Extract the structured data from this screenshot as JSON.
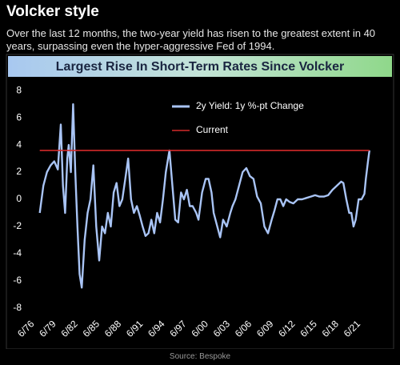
{
  "header": {
    "title": "Volcker style",
    "subtitle": "Over the last 12 months, the two-year yield has risen to the greatest extent in 40 years, surpassing even the hyper-aggressive Fed of 1994."
  },
  "chart_data": {
    "type": "line",
    "title": "Largest Rise In Short-Term Rates Since Volcker",
    "xlim": [
      1975.6,
      2023.4
    ],
    "ylim": [
      -8.6,
      8.6
    ],
    "yticks": [
      -8,
      -6,
      -4,
      -2,
      0,
      2,
      4,
      6,
      8
    ],
    "xticks": [
      {
        "value": 1976.5,
        "label": "6/76"
      },
      {
        "value": 1979.5,
        "label": "6/79"
      },
      {
        "value": 1982.5,
        "label": "6/82"
      },
      {
        "value": 1985.5,
        "label": "6/85"
      },
      {
        "value": 1988.5,
        "label": "6/88"
      },
      {
        "value": 1991.5,
        "label": "6/91"
      },
      {
        "value": 1994.5,
        "label": "6/94"
      },
      {
        "value": 1997.5,
        "label": "6/97"
      },
      {
        "value": 2000.5,
        "label": "6/00"
      },
      {
        "value": 2003.5,
        "label": "6/03"
      },
      {
        "value": 2006.5,
        "label": "6/06"
      },
      {
        "value": 2009.5,
        "label": "6/09"
      },
      {
        "value": 2012.5,
        "label": "6/12"
      },
      {
        "value": 2015.5,
        "label": "6/15"
      },
      {
        "value": 2018.5,
        "label": "6/18"
      },
      {
        "value": 2021.5,
        "label": "6/21"
      }
    ],
    "legend": "upper center",
    "series": [
      {
        "name": "2y Yield: 1y %-pt Change",
        "color": "#a9c4f5",
        "x": [
          1977.0,
          1977.5,
          1978.0,
          1978.5,
          1979.0,
          1979.5,
          1979.9,
          1980.2,
          1980.5,
          1980.8,
          1981.0,
          1981.3,
          1981.6,
          1981.9,
          1982.2,
          1982.5,
          1982.8,
          1983.2,
          1983.6,
          1984.0,
          1984.4,
          1984.8,
          1985.2,
          1985.6,
          1986.0,
          1986.4,
          1986.8,
          1987.2,
          1987.6,
          1988.0,
          1988.4,
          1988.8,
          1989.2,
          1989.6,
          1990.0,
          1990.4,
          1990.8,
          1991.2,
          1991.6,
          1992.0,
          1992.4,
          1992.8,
          1993.2,
          1993.6,
          1994.0,
          1994.4,
          1994.9,
          1995.3,
          1995.7,
          1996.1,
          1996.5,
          1996.9,
          1997.3,
          1997.7,
          1998.1,
          1998.6,
          1998.9,
          1999.4,
          1999.9,
          2000.3,
          2000.7,
          2001.0,
          2001.5,
          2001.9,
          2002.3,
          2002.8,
          2003.3,
          2003.6,
          2004.0,
          2004.5,
          2005.0,
          2005.5,
          2006.0,
          2006.5,
          2007.0,
          2007.5,
          2008.0,
          2008.5,
          2009.0,
          2009.4,
          2009.8,
          2010.2,
          2010.6,
          2011.0,
          2011.5,
          2012.0,
          2012.6,
          2013.2,
          2013.8,
          2014.4,
          2015.0,
          2015.6,
          2016.2,
          2016.8,
          2017.4,
          2018.0,
          2018.6,
          2018.9,
          2019.3,
          2019.7,
          2020.0,
          2020.3,
          2020.6,
          2021.0,
          2021.4,
          2021.8,
          2022.0,
          2022.3,
          2022.5
        ],
        "values": [
          -1,
          1,
          2,
          2.5,
          2.8,
          2.2,
          5.5,
          1,
          -1,
          3,
          4,
          2,
          7,
          2,
          -2,
          -5.5,
          -6.5,
          -3,
          -1,
          0,
          2.5,
          -2,
          -4.5,
          -2,
          -2.5,
          -1,
          -2,
          0.5,
          1.2,
          -0.5,
          0,
          1.5,
          3,
          0,
          -1,
          -0.5,
          -1.2,
          -2,
          -2.7,
          -2.5,
          -1.5,
          -2.5,
          -1,
          -1.7,
          0,
          2,
          3.6,
          1,
          -1.5,
          -1.7,
          0.5,
          0,
          0.7,
          -0.5,
          -0.5,
          -1,
          -1.5,
          0.5,
          1.5,
          1.5,
          0.5,
          -1,
          -2,
          -2.8,
          -1.5,
          -2,
          -1,
          -0.5,
          0,
          1,
          2,
          2.3,
          1.7,
          1.5,
          0.2,
          -0.3,
          -2,
          -2.5,
          -1.5,
          -0.8,
          0,
          0,
          -0.5,
          0,
          -0.2,
          -0.3,
          0,
          0,
          0.1,
          0.2,
          0.3,
          0.2,
          0.2,
          0.3,
          0.7,
          1,
          1.3,
          1.2,
          0,
          -1,
          -1,
          -2,
          -1.5,
          0,
          0,
          0.4,
          1.5,
          2.8,
          3.6
        ]
      },
      {
        "name": "Current",
        "color": "#d42a2a",
        "x": [
          1977.0,
          2022.5
        ],
        "values": [
          3.6,
          3.6
        ]
      }
    ]
  },
  "source": "Source: Bespoke"
}
